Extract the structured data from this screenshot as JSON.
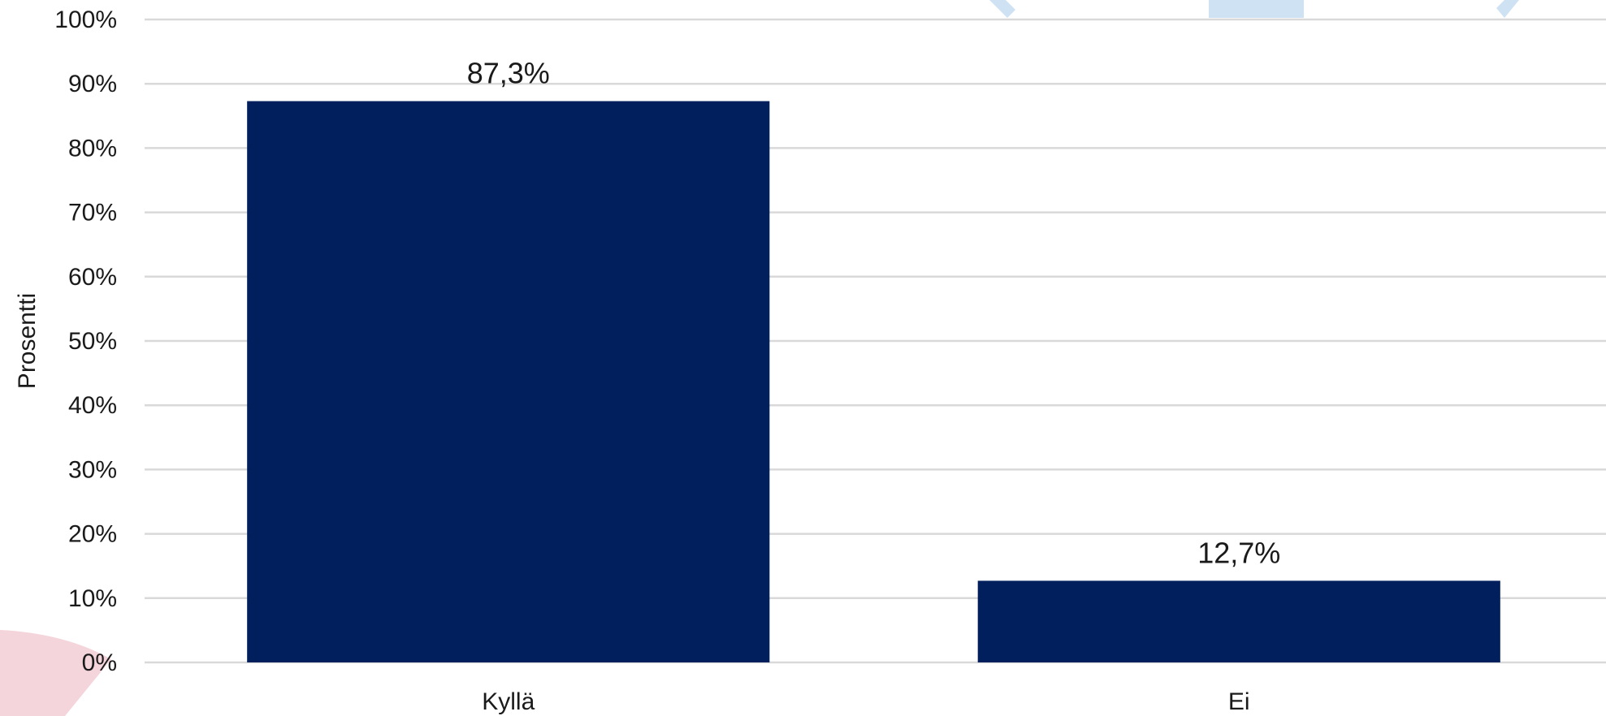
{
  "chart_data": {
    "type": "bar",
    "categories": [
      "Kyllä",
      "Ei"
    ],
    "values": [
      87.3,
      12.7
    ],
    "data_labels": [
      "87,3%",
      "12,7%"
    ],
    "title": "",
    "xlabel": "",
    "ylabel": "Prosentti",
    "ylim": [
      0,
      100
    ],
    "ytick_values": [
      0,
      10,
      20,
      30,
      40,
      50,
      60,
      70,
      80,
      90,
      100
    ],
    "ytick_labels": [
      "0%",
      "10%",
      "20%",
      "30%",
      "40%",
      "50%",
      "60%",
      "70%",
      "80%",
      "90%",
      "100%"
    ],
    "grid": true,
    "legend": "none",
    "colors": {
      "bar": "#001f5c",
      "grid": "#d9d9d9",
      "decor_pink": "#f5d5dc",
      "decor_blue": "#cfe2f3"
    }
  }
}
